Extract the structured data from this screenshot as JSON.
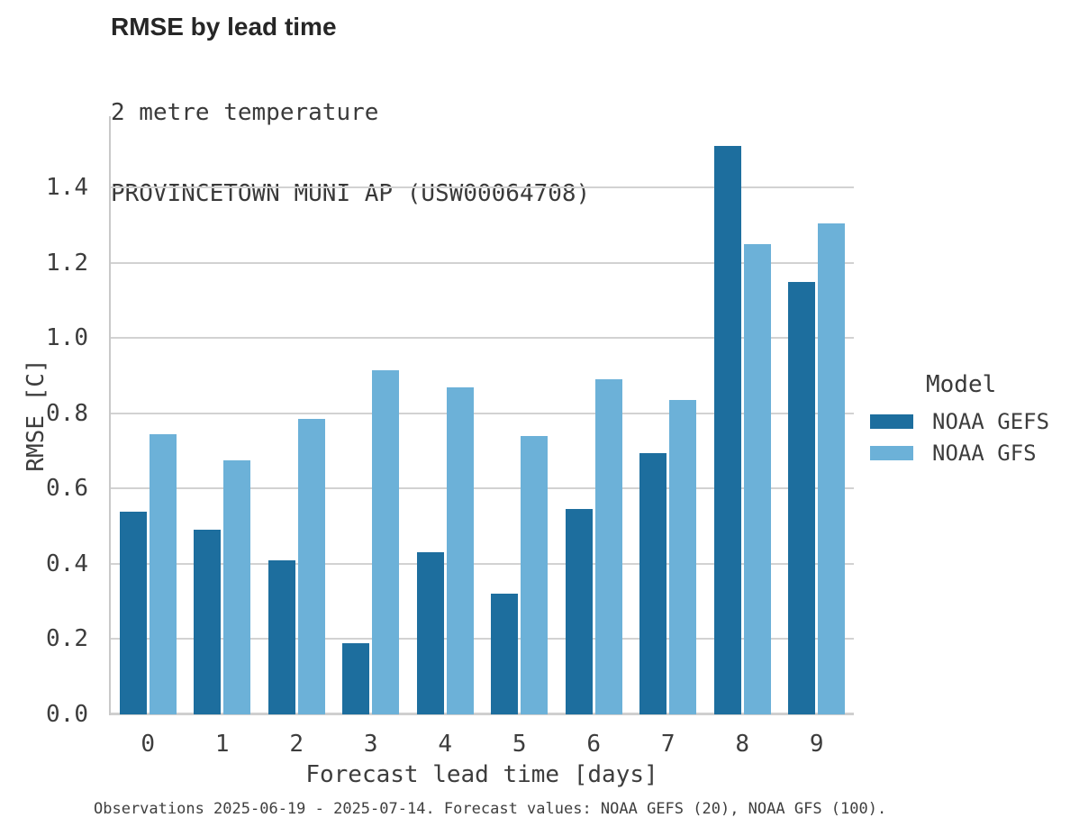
{
  "chart_data": {
    "type": "bar",
    "title": "RMSE by lead time",
    "subtitle_line1": "2 metre temperature",
    "subtitle_line2": "PROVINCETOWN MUNI AP (USW00064708)",
    "xlabel": "Forecast lead time [days]",
    "ylabel": "RMSE [C]",
    "categories": [
      "0",
      "1",
      "2",
      "3",
      "4",
      "5",
      "6",
      "7",
      "8",
      "9"
    ],
    "series": [
      {
        "name": "NOAA GEFS",
        "color": "#1d6e9e",
        "values": [
          0.54,
          0.49,
          0.41,
          0.19,
          0.43,
          0.32,
          0.545,
          0.695,
          1.51,
          1.15
        ]
      },
      {
        "name": "NOAA GFS",
        "color": "#6cb1d8",
        "values": [
          0.745,
          0.675,
          0.785,
          0.915,
          0.87,
          0.74,
          0.89,
          0.835,
          1.25,
          1.305
        ]
      }
    ],
    "yticks": [
      "0.0",
      "0.2",
      "0.4",
      "0.6",
      "0.8",
      "1.0",
      "1.2",
      "1.4"
    ],
    "ylim": [
      0,
      1.59
    ],
    "grid": "horizontal",
    "legend": {
      "title": "Model",
      "position": "right"
    },
    "caption": "Observations 2025-06-19 - 2025-07-14. Forecast values: NOAA GEFS (20), NOAA GFS (100)."
  }
}
